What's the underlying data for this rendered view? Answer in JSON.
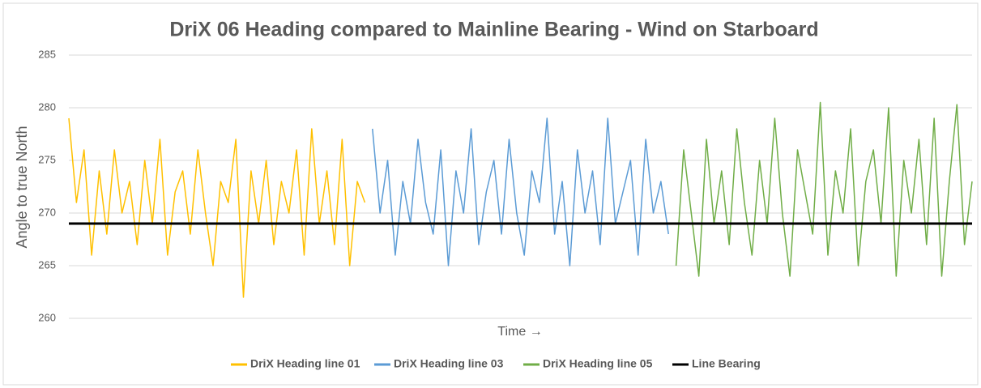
{
  "chart_data": {
    "type": "line",
    "title": "DriX 06 Heading compared to Mainline Bearing - Wind on Starboard",
    "y_label": "Angle to true North",
    "x_label": "Time →",
    "ylim": [
      260,
      285
    ],
    "yticks": [
      260,
      265,
      270,
      275,
      280,
      285
    ],
    "grid": true,
    "legend": "bottom",
    "series": [
      {
        "name": "DriX Heading line 01",
        "color": "#ffc000",
        "width": 1.5,
        "values": [
          279,
          271,
          276,
          266,
          274,
          268,
          276,
          270,
          273,
          267,
          275,
          269,
          277,
          266,
          272,
          274,
          268,
          276,
          270,
          265,
          273,
          271,
          277,
          262,
          274,
          269,
          275,
          267,
          273,
          270,
          276,
          266,
          278,
          269,
          274,
          267,
          277,
          265,
          273,
          271,
          null,
          null,
          null,
          null,
          null,
          null,
          null,
          null,
          null,
          null,
          null,
          null,
          null,
          null,
          null,
          null,
          null,
          null,
          null,
          null,
          null,
          null,
          null,
          null,
          null,
          null,
          null,
          null,
          null,
          null,
          null,
          null,
          null,
          null,
          null,
          null,
          null,
          null,
          null,
          null,
          null,
          null,
          null,
          null,
          null,
          null,
          null,
          null,
          null,
          null,
          null,
          null,
          null,
          null,
          null,
          null,
          null,
          null,
          null,
          null,
          null,
          null,
          null,
          null,
          null,
          null,
          null,
          null,
          null,
          null,
          null,
          null,
          null,
          null,
          null,
          null,
          null,
          null,
          null,
          null
        ]
      },
      {
        "name": "DriX Heading line 03",
        "color": "#5b9bd5",
        "width": 1.5,
        "values": [
          null,
          null,
          null,
          null,
          null,
          null,
          null,
          null,
          null,
          null,
          null,
          null,
          null,
          null,
          null,
          null,
          null,
          null,
          null,
          null,
          null,
          null,
          null,
          null,
          null,
          null,
          null,
          null,
          null,
          null,
          null,
          null,
          null,
          null,
          null,
          null,
          null,
          null,
          null,
          null,
          278,
          270,
          275,
          266,
          273,
          269,
          277,
          271,
          268,
          276,
          265,
          274,
          270,
          278,
          267,
          272,
          275,
          268,
          277,
          270,
          266,
          274,
          271,
          279,
          268,
          273,
          265,
          276,
          270,
          274,
          267,
          279,
          269,
          272,
          275,
          266,
          277,
          270,
          273,
          268,
          null,
          null,
          null,
          null,
          null,
          null,
          null,
          null,
          null,
          null,
          null,
          null,
          null,
          null,
          null,
          null,
          null,
          null,
          null,
          null,
          null,
          null,
          null,
          null,
          null,
          null,
          null,
          null,
          null,
          null,
          null,
          null,
          null,
          null,
          null,
          null,
          null,
          null,
          null,
          null
        ]
      },
      {
        "name": "DriX Heading line 05",
        "color": "#70ad47",
        "width": 1.5,
        "values": [
          null,
          null,
          null,
          null,
          null,
          null,
          null,
          null,
          null,
          null,
          null,
          null,
          null,
          null,
          null,
          null,
          null,
          null,
          null,
          null,
          null,
          null,
          null,
          null,
          null,
          null,
          null,
          null,
          null,
          null,
          null,
          null,
          null,
          null,
          null,
          null,
          null,
          null,
          null,
          null,
          null,
          null,
          null,
          null,
          null,
          null,
          null,
          null,
          null,
          null,
          null,
          null,
          null,
          null,
          null,
          null,
          null,
          null,
          null,
          null,
          null,
          null,
          null,
          null,
          null,
          null,
          null,
          null,
          null,
          null,
          null,
          null,
          null,
          null,
          null,
          null,
          null,
          null,
          null,
          null,
          265,
          276,
          270,
          264,
          277,
          269,
          274,
          267,
          278,
          271,
          266,
          275,
          269,
          279,
          270,
          264,
          276,
          272,
          268,
          280.5,
          266,
          274,
          270,
          278,
          265,
          273,
          276,
          269,
          280,
          264,
          275,
          270,
          277,
          267,
          279,
          264,
          273,
          280.3,
          267,
          273
        ]
      },
      {
        "name": "Line Bearing",
        "color": "#000000",
        "width": 3,
        "values": [
          269,
          269,
          269,
          269,
          269,
          269,
          269,
          269,
          269,
          269,
          269,
          269,
          269,
          269,
          269,
          269,
          269,
          269,
          269,
          269,
          269,
          269,
          269,
          269,
          269,
          269,
          269,
          269,
          269,
          269,
          269,
          269,
          269,
          269,
          269,
          269,
          269,
          269,
          269,
          269,
          269,
          269,
          269,
          269,
          269,
          269,
          269,
          269,
          269,
          269,
          269,
          269,
          269,
          269,
          269,
          269,
          269,
          269,
          269,
          269,
          269,
          269,
          269,
          269,
          269,
          269,
          269,
          269,
          269,
          269,
          269,
          269,
          269,
          269,
          269,
          269,
          269,
          269,
          269,
          269,
          269,
          269,
          269,
          269,
          269,
          269,
          269,
          269,
          269,
          269,
          269,
          269,
          269,
          269,
          269,
          269,
          269,
          269,
          269,
          269,
          269,
          269,
          269,
          269,
          269,
          269,
          269,
          269,
          269,
          269,
          269,
          269,
          269,
          269,
          269,
          269,
          269,
          269,
          269,
          269
        ]
      }
    ]
  }
}
